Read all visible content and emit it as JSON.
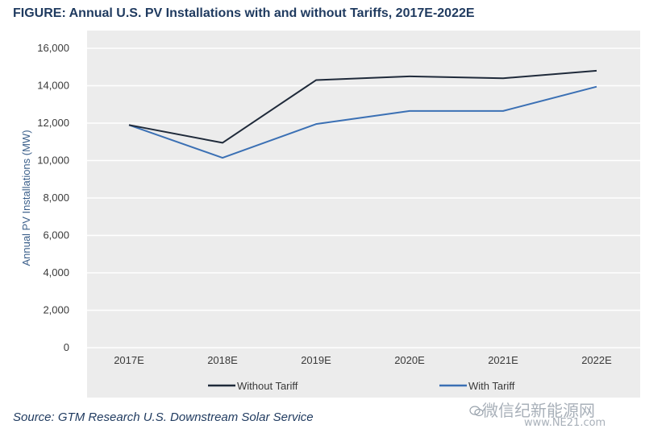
{
  "chart_data": {
    "type": "line",
    "title": "FIGURE: Annual U.S. PV Installations with and without Tariffs, 2017E-2022E",
    "xlabel": "",
    "ylabel": "Annual PV Installations (MW)",
    "categories": [
      "2017E",
      "2018E",
      "2019E",
      "2020E",
      "2021E",
      "2022E"
    ],
    "ylim": [
      0,
      16000
    ],
    "yticks": [
      0,
      2000,
      4000,
      6000,
      8000,
      10000,
      12000,
      14000,
      16000
    ],
    "ytick_labels": [
      "0",
      "2,000",
      "4,000",
      "6,000",
      "8,000",
      "10,000",
      "12,000",
      "14,000",
      "16,000"
    ],
    "grid": true,
    "legend_position": "bottom",
    "series": [
      {
        "name": "Without Tariff",
        "color": "#1f2a3a",
        "values": [
          11900,
          10950,
          14300,
          14500,
          14400,
          14800
        ]
      },
      {
        "name": "With Tariff",
        "color": "#3b70b4",
        "values": [
          11900,
          10150,
          11950,
          12650,
          12650,
          13950
        ]
      }
    ],
    "plot_background": "#ececec",
    "source": "Source: GTM Research U.S. Downstream Solar Service"
  },
  "watermark": {
    "text": "微信纪新能源网",
    "url": "www.NE21.com"
  }
}
